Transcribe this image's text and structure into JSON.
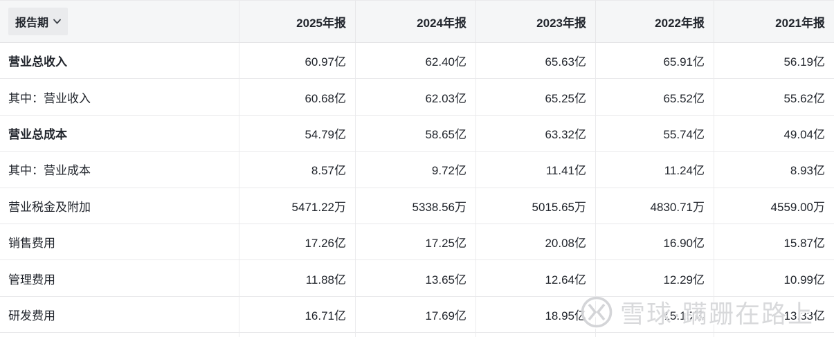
{
  "table": {
    "header": {
      "label": "报告期",
      "columns": [
        "2025年报",
        "2024年报",
        "2023年报",
        "2022年报",
        "2021年报"
      ]
    },
    "rows": [
      {
        "label": "营业总收入",
        "bold": true,
        "values": [
          "60.97亿",
          "62.40亿",
          "65.63亿",
          "65.91亿",
          "56.19亿"
        ]
      },
      {
        "label": "其中：营业收入",
        "bold": false,
        "values": [
          "60.68亿",
          "62.03亿",
          "65.25亿",
          "65.52亿",
          "55.62亿"
        ]
      },
      {
        "label": "营业总成本",
        "bold": true,
        "values": [
          "54.79亿",
          "58.65亿",
          "63.32亿",
          "55.74亿",
          "49.04亿"
        ]
      },
      {
        "label": "其中：营业成本",
        "bold": false,
        "values": [
          "8.57亿",
          "9.72亿",
          "11.41亿",
          "11.24亿",
          "8.93亿"
        ]
      },
      {
        "label": "营业税金及附加",
        "bold": false,
        "values": [
          "5471.22万",
          "5338.56万",
          "5015.65万",
          "4830.71万",
          "4559.00万"
        ]
      },
      {
        "label": "销售费用",
        "bold": false,
        "values": [
          "17.26亿",
          "17.25亿",
          "20.08亿",
          "16.90亿",
          "15.87亿"
        ]
      },
      {
        "label": "管理费用",
        "bold": false,
        "values": [
          "11.88亿",
          "13.65亿",
          "12.64亿",
          "12.29亿",
          "10.99亿"
        ]
      },
      {
        "label": "研发费用",
        "bold": false,
        "values": [
          "16.71亿",
          "17.69亿",
          "18.95亿",
          "15.15亿",
          "13.33亿"
        ]
      }
    ]
  },
  "watermark": {
    "text": "雪球·蹒跚在路上"
  },
  "colors": {
    "header_bg": "#f5f6f7",
    "period_button_bg": "#eaebed",
    "border": "#e9e9eb",
    "text": "#21252c",
    "watermark_text": "#d6d7da"
  }
}
